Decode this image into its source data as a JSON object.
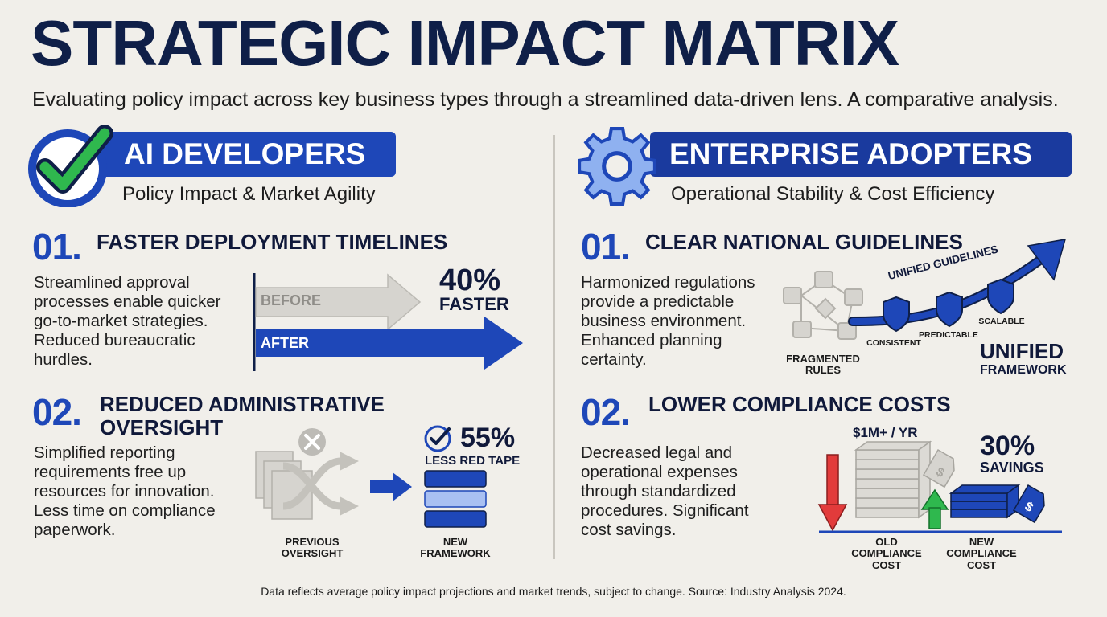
{
  "header": {
    "title": "STRATEGIC IMPACT MATRIX",
    "subtitle": "Evaluating policy impact across key business types through a streamlined data-driven lens. A comparative analysis."
  },
  "left": {
    "banner": "AI DEVELOPERS",
    "subheading": "Policy Impact & Market Agility",
    "icon": "check-icon",
    "item1": {
      "num": "01.",
      "title": "FASTER DEPLOYMENT TIMELINES",
      "body": "Streamlined approval processes enable quicker go-to-market strategies. Reduced bureaucratic hurdles.",
      "before_label": "BEFORE",
      "after_label": "AFTER",
      "stat": "40%",
      "stat_label": "FASTER"
    },
    "item2": {
      "num": "02.",
      "title_line1": "REDUCED ADMINISTRATIVE",
      "title_line2": "OVERSIGHT",
      "body": "Simplified reporting requirements free up resources for innovation. Less time on compliance paperwork.",
      "stat": "55%",
      "stat_label": "LESS RED TAPE",
      "prev_line1": "PREVIOUS",
      "prev_line2": "OVERSIGHT",
      "new_line1": "NEW",
      "new_line2": "FRAMEWORK"
    }
  },
  "right": {
    "banner": "ENTERPRISE ADOPTERS",
    "subheading": "Operational Stability & Cost Efficiency",
    "icon": "gear-icon",
    "item1": {
      "num": "01.",
      "title": "CLEAR NATIONAL GUIDELINES",
      "body": "Harmonized regulations provide a predictable business environment. Enhanced planning certainty.",
      "curve_label": "UNIFIED GUIDELINES",
      "fragmented_line1": "FRAGMENTED",
      "fragmented_line2": "RULES",
      "shield_labels": [
        "CONSISTENT",
        "PREDICTABLE",
        "SCALABLE"
      ],
      "unified_line1": "UNIFIED",
      "unified_line2": "FRAMEWORK"
    },
    "item2": {
      "num": "02.",
      "title": "LOWER COMPLIANCE COSTS",
      "body": "Decreased legal and operational expenses through standardized procedures. Significant cost savings.",
      "old_cost": "$1M+ / YR",
      "stat": "30%",
      "stat_label": "SAVINGS",
      "old_line1": "OLD",
      "old_line2": "COMPLIANCE",
      "old_line3": "COST",
      "new_line1": "NEW",
      "new_line2": "COMPLIANCE",
      "new_line3": "COST",
      "tag_symbol": "$"
    }
  },
  "footer": "Data reflects average policy impact projections and market trends, subject to change. Source: Industry Analysis 2024.",
  "colors": {
    "brand_blue": "#1e47b8",
    "navy": "#0f1f48",
    "green": "#2fb84e",
    "red": "#e23b3b"
  }
}
